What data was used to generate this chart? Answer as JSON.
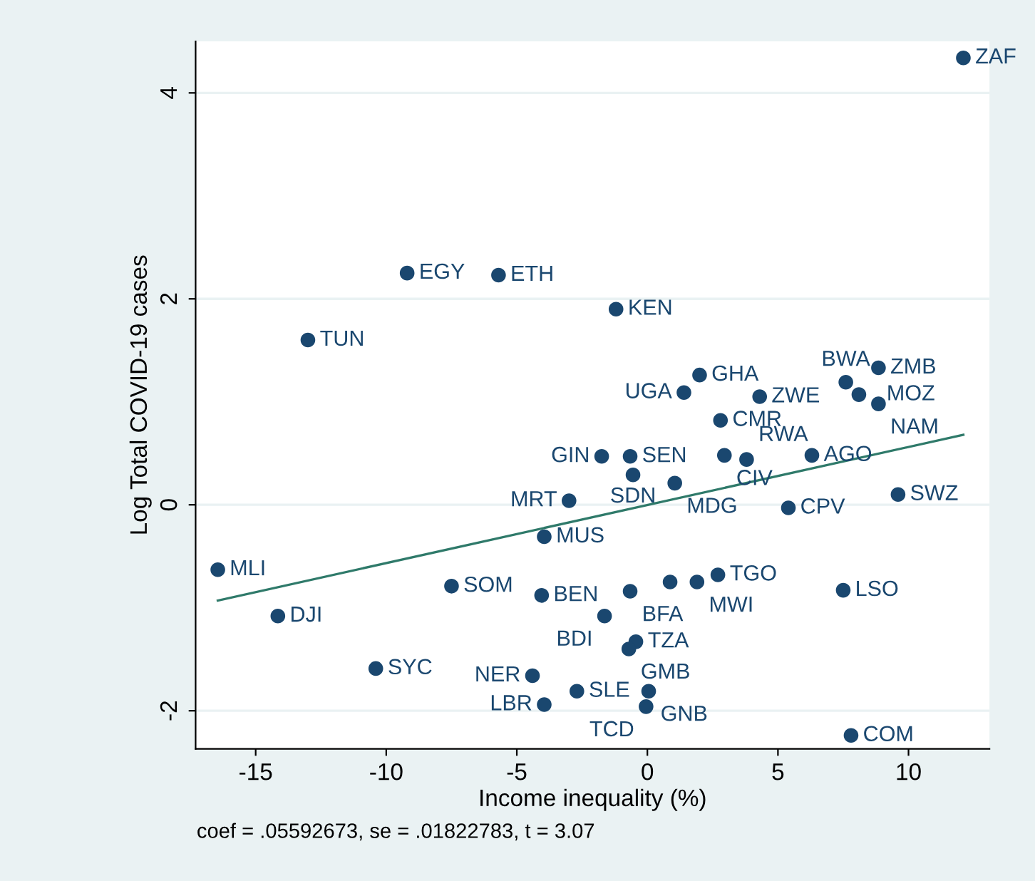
{
  "chart_data": {
    "type": "scatter",
    "xlabel": "Income inequality (%)",
    "ylabel": "Log Total COVID-19 cases",
    "annotations": [
      "coef = .05592673, se = .01822783, t = 3.07",
      {
        "text": "ZAF",
        "x": 12.1,
        "y": 4.34
      },
      {
        "text": "EGY",
        "x": -9.2,
        "y": 2.25
      },
      {
        "text": "ETH",
        "x": -5.7,
        "y": 2.23
      },
      {
        "text": "KEN",
        "x": -1.2,
        "y": 1.9
      },
      {
        "text": "TUN",
        "x": -13.0,
        "y": 1.6
      },
      {
        "text": "GHA",
        "x": 2.0,
        "y": 1.26
      },
      {
        "text": "UGA",
        "x": 1.4,
        "y": 1.09
      },
      {
        "text": "ZWE",
        "x": 4.3,
        "y": 1.05
      },
      {
        "text": "ZMB",
        "x": 8.85,
        "y": 1.33
      },
      {
        "text": "BWA",
        "x": 7.6,
        "y": 1.19
      },
      {
        "text": "MOZ",
        "x": 8.1,
        "y": 1.07
      },
      {
        "text": "NAM",
        "x": 8.85,
        "y": 0.98
      },
      {
        "text": "CMR",
        "x": 2.8,
        "y": 0.82
      },
      {
        "text": "GIN",
        "x": -1.75,
        "y": 0.47
      },
      {
        "text": "SEN",
        "x": -0.66,
        "y": 0.47
      },
      {
        "text": "CIV",
        "x": 2.95,
        "y": 0.48
      },
      {
        "text": "RWA",
        "x": 3.8,
        "y": 0.44
      },
      {
        "text": "AGO",
        "x": 6.3,
        "y": 0.48
      },
      {
        "text": "SDN",
        "x": -0.55,
        "y": 0.29
      },
      {
        "text": "MDG",
        "x": 1.05,
        "y": 0.21
      },
      {
        "text": "MRT",
        "x": -3.0,
        "y": 0.04
      },
      {
        "text": "SWZ",
        "x": 9.6,
        "y": 0.1
      },
      {
        "text": "CPV",
        "x": 5.4,
        "y": -0.03
      },
      {
        "text": "MUS",
        "x": -3.95,
        "y": -0.31
      },
      {
        "text": "MLI",
        "x": -16.45,
        "y": -0.63
      },
      {
        "text": "SOM",
        "x": -7.5,
        "y": -0.79
      },
      {
        "text": "BEN",
        "x": -4.05,
        "y": -0.88
      },
      {
        "text": "DJI",
        "x": -14.15,
        "y": -1.08
      },
      {
        "text": "SYC",
        "x": -10.4,
        "y": -1.59
      },
      {
        "text": "NER",
        "x": -4.4,
        "y": -1.66
      },
      {
        "text": "SLE",
        "x": -2.7,
        "y": -1.81
      },
      {
        "text": "LBR",
        "x": -3.95,
        "y": -1.94
      },
      {
        "text": "TGO",
        "x": 2.7,
        "y": -0.68
      },
      {
        "text": "MWI",
        "x": 1.9,
        "y": -0.75
      },
      {
        "text": "BFA",
        "x": -0.66,
        "y": -0.84
      },
      {
        "text": "BDI",
        "x": -1.64,
        "y": -1.08
      },
      {
        "text": "TZA",
        "x": -0.44,
        "y": -1.33
      },
      {
        "text": "GMB",
        "x": -0.71,
        "y": -1.4
      },
      {
        "text": "LSO",
        "x": 7.5,
        "y": -0.83
      },
      {
        "text": "GNB",
        "x": 0.05,
        "y": -1.81
      },
      {
        "text": "TCD",
        "x": -0.05,
        "y": -1.96
      },
      {
        "text": "COM",
        "x": 7.8,
        "y": -2.24
      }
    ],
    "series": [
      {
        "color": "#1a476f",
        "marker": "circle",
        "x": [
          12.1,
          -9.2,
          -5.7,
          -1.2,
          -13.0,
          2.0,
          1.4,
          4.3,
          8.85,
          7.6,
          8.1,
          8.85,
          2.8,
          -1.75,
          -0.66,
          2.95,
          3.8,
          6.3,
          -0.55,
          1.05,
          -3.0,
          9.6,
          5.4,
          -3.95,
          -16.45,
          -7.5,
          -4.05,
          -14.15,
          -10.4,
          -4.4,
          -2.7,
          -3.95,
          2.7,
          1.9,
          0.87,
          -0.66,
          -1.64,
          -0.44,
          -0.71,
          7.5,
          0.05,
          -0.05,
          7.8
        ],
        "values": [
          4.34,
          2.25,
          2.23,
          1.9,
          1.6,
          1.26,
          1.09,
          1.05,
          1.33,
          1.19,
          1.07,
          0.98,
          0.82,
          0.47,
          0.47,
          0.48,
          0.44,
          0.48,
          0.29,
          0.21,
          0.04,
          0.1,
          -0.03,
          -0.31,
          -0.63,
          -0.79,
          -0.88,
          -1.08,
          -1.59,
          -1.66,
          -1.81,
          -1.94,
          -0.68,
          -0.75,
          -0.75,
          -0.84,
          -1.08,
          -1.33,
          -1.4,
          -0.83,
          -1.81,
          -1.96,
          -2.24
        ]
      },
      {
        "type": "line",
        "color": "#2f7a6a",
        "marker": "none",
        "line_style": "solid",
        "x": [
          -16.45,
          12.1
        ],
        "values": [
          -0.93,
          0.68
        ]
      }
    ],
    "xlim": [
      -17.3,
      13.1
    ],
    "ylim": [
      -2.37,
      4.5
    ],
    "xticks": [
      -15,
      -10,
      -5,
      0,
      5,
      10
    ],
    "yticks": [
      -2,
      0,
      2,
      4
    ],
    "grid": "y",
    "legend": false
  }
}
